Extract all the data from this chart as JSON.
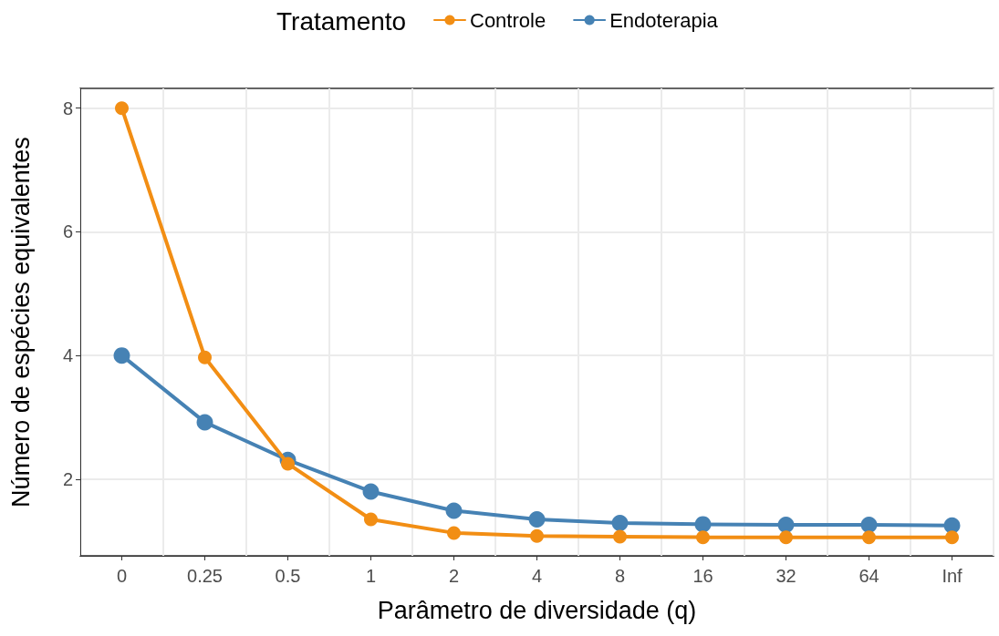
{
  "chart_data": {
    "type": "line",
    "xlabel": "Parâmetro de diversidade (q)",
    "ylabel": "Número de espécies equivalentes",
    "legend_title": "Tratamento",
    "legend": "top",
    "grid": true,
    "marker": "circle",
    "line_style": "solid",
    "categories": [
      "0",
      "0.25",
      "0.5",
      "1",
      "2",
      "4",
      "8",
      "16",
      "32",
      "64",
      "Inf"
    ],
    "ylim": [
      0.76,
      8.32
    ],
    "yticks": [
      2,
      4,
      6,
      8
    ],
    "series": [
      {
        "name": "Controle",
        "color": "#f28e14",
        "values": [
          8,
          3.97,
          2.25,
          1.35,
          1.13,
          1.08,
          1.07,
          1.06,
          1.06,
          1.06,
          1.06
        ]
      },
      {
        "name": "Endoterapia",
        "color": "#4682b4",
        "values": [
          4,
          2.92,
          2.31,
          1.8,
          1.49,
          1.35,
          1.29,
          1.27,
          1.26,
          1.26,
          1.25
        ]
      }
    ]
  }
}
